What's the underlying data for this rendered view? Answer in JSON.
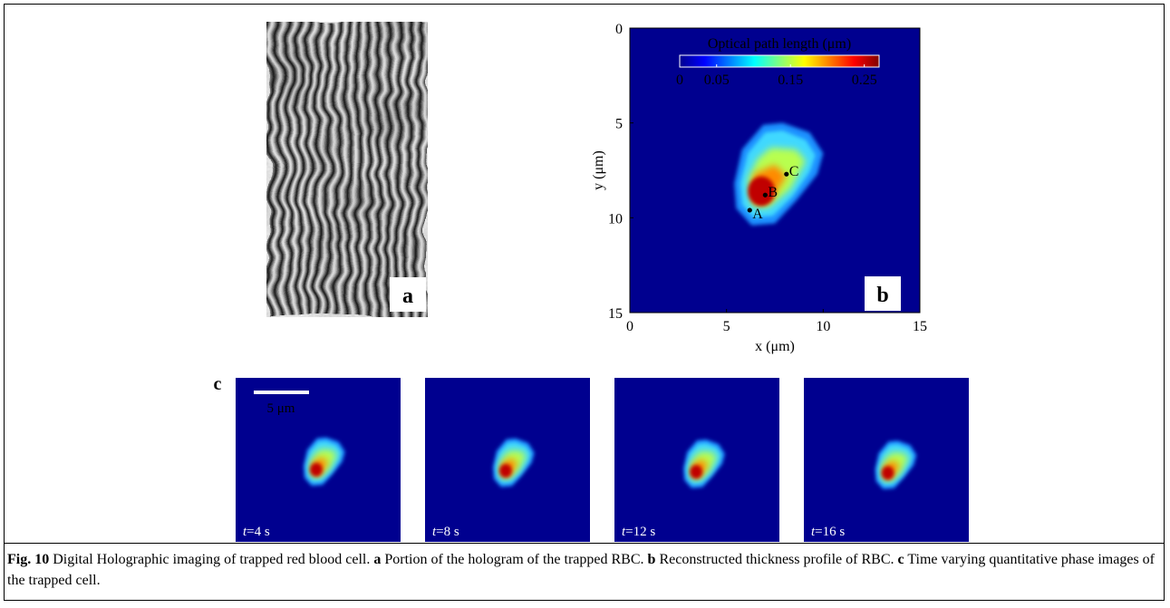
{
  "panel_a": {
    "label": "a"
  },
  "panel_b": {
    "label": "b",
    "type": "heatmap",
    "xlabel": "x (μm)",
    "ylabel": "y (μm)",
    "xlim": [
      0,
      15
    ],
    "ylim": [
      15,
      0
    ],
    "xticks": [
      0,
      5,
      10,
      15
    ],
    "yticks": [
      0,
      5,
      10,
      15
    ],
    "colorbar": {
      "title": "Optical path length (μm)",
      "lim": [
        0,
        0.27
      ],
      "ticks": [
        0,
        0.05,
        0.15,
        0.25
      ]
    },
    "points": [
      {
        "label": "A",
        "x": 6.2,
        "y": 9.6
      },
      {
        "label": "B",
        "x": 7.0,
        "y": 8.8
      },
      {
        "label": "C",
        "x": 8.1,
        "y": 7.7
      }
    ]
  },
  "panel_c": {
    "label": "c",
    "scale_bar": "5 μm",
    "frames": [
      {
        "var": "t",
        "time": "=4 s"
      },
      {
        "var": "t",
        "time": "=8 s"
      },
      {
        "var": "t",
        "time": "=12 s"
      },
      {
        "var": "t",
        "time": "=16 s"
      }
    ]
  },
  "caption": {
    "segments": [
      {
        "text": "Fig. 10",
        "bold": true
      },
      {
        "text": " Digital Holographic imaging of trapped red blood cell. ",
        "bold": false
      },
      {
        "text": "a",
        "bold": true
      },
      {
        "text": " Portion of the hologram of the trapped RBC. ",
        "bold": false
      },
      {
        "text": "b",
        "bold": true
      },
      {
        "text": " Reconstructed thickness profile of RBC. ",
        "bold": false
      },
      {
        "text": "c",
        "bold": true
      },
      {
        "text": " Time varying quantitative phase images of the trapped cell.",
        "bold": false
      }
    ]
  }
}
